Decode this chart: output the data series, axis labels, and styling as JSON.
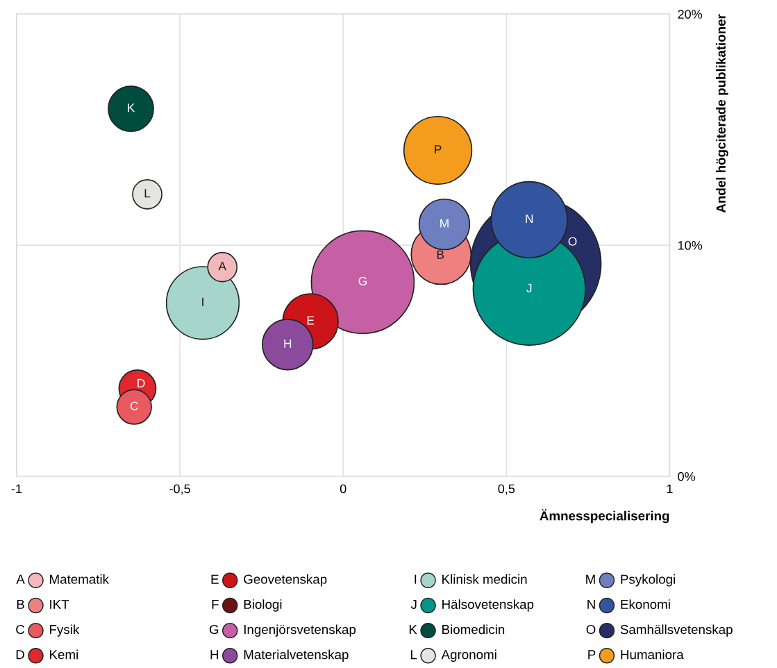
{
  "chart_data": {
    "type": "bubble",
    "xlabel": "Ämnesspecialisering",
    "ylabel": "Andel högciterade publikationer",
    "xlim": [
      -1,
      1
    ],
    "xticks": [
      -1,
      {
        "value": -0.5,
        "label": "-0,5"
      },
      0,
      {
        "value": 0.5,
        "label": "0,5"
      },
      1
    ],
    "ylim": [
      0,
      20
    ],
    "yticks": [
      {
        "value": 0,
        "label": "0%"
      },
      {
        "value": 10,
        "label": "10%"
      },
      {
        "value": 20,
        "label": "20%"
      }
    ],
    "grid": true,
    "legend": "bottom",
    "annotations": [
      {
        "text": "A",
        "x": -0.37,
        "y": 9.05
      },
      {
        "text": "B",
        "x": 0.3,
        "y": 9.6
      },
      {
        "text": "C",
        "x": -0.64,
        "y": 3.0
      },
      {
        "text": "D",
        "x": -0.63,
        "y": 3.8
      },
      {
        "text": "E",
        "x": -0.1,
        "y": 6.7
      },
      "F",
      {
        "text": "G",
        "x": 0.06,
        "y": 8.4
      },
      {
        "text": "H",
        "x": -0.17,
        "y": 5.7
      },
      {
        "text": "I",
        "x": -0.43,
        "y": 7.5
      },
      {
        "text": "J",
        "x": 0.57,
        "y": 8.1
      },
      {
        "text": "K",
        "x": -0.65,
        "y": 15.9
      },
      {
        "text": "L",
        "x": -0.6,
        "y": 12.2
      },
      {
        "text": "M",
        "x": 0.31,
        "y": 10.9
      },
      {
        "text": "N",
        "x": 0.57,
        "y": 11.1
      },
      "O",
      {
        "text": "P",
        "x": 0.29,
        "y": 14.1
      }
    ],
    "series": [
      {
        "name": "Matematik",
        "color": "#f2b8bb",
        "x": [
          -0.37
        ],
        "values": [
          9.05
        ],
        "sizes": [
          0.05
        ]
      },
      {
        "name": "IKT",
        "color": "#ef8080",
        "x": [
          0.3
        ],
        "values": [
          9.6
        ],
        "sizes": [
          0.21
        ]
      },
      {
        "name": "Fysik",
        "color": "#e85a5f",
        "x": [
          -0.64
        ],
        "values": [
          3.0
        ],
        "sizes": [
          0.07
        ]
      },
      {
        "name": "Kemi",
        "color": "#e0262e",
        "x": [
          -0.63
        ],
        "values": [
          3.8
        ],
        "sizes": [
          0.08
        ]
      },
      {
        "name": "Geovetenskap",
        "color": "#cc1419",
        "x": [
          -0.1
        ],
        "values": [
          6.7
        ],
        "sizes": [
          0.18
        ]
      },
      {
        "name": "Biologi",
        "color": "#6b1414",
        "x": [
          null
        ],
        "values": [
          null
        ],
        "sizes": [
          null
        ]
      },
      {
        "name": "Ingenjörsvetenskap",
        "color": "#c660a4",
        "x": [
          0.06
        ],
        "values": [
          8.4
        ],
        "sizes": [
          0.62
        ]
      },
      {
        "name": "Materialvetenskap",
        "color": "#8c4a9c",
        "x": [
          -0.17
        ],
        "values": [
          5.7
        ],
        "sizes": [
          0.15
        ]
      },
      {
        "name": "Klinisk medicin",
        "color": "#a6d6cb",
        "x": [
          -0.43
        ],
        "values": [
          7.5
        ],
        "sizes": [
          0.31
        ]
      },
      {
        "name": "Hälsovetenskap",
        "color": "#009688",
        "x": [
          0.57
        ],
        "values": [
          8.1
        ],
        "sizes": [
          0.74
        ]
      },
      {
        "name": "Biomedicin",
        "color": "#004d40",
        "x": [
          -0.65
        ],
        "values": [
          15.9
        ],
        "sizes": [
          0.12
        ]
      },
      {
        "name": "Agronomi",
        "color": "#e4e4e0",
        "x": [
          -0.6
        ],
        "values": [
          12.2
        ],
        "sizes": [
          0.05
        ]
      },
      {
        "name": "Psykologi",
        "color": "#6d7fc0",
        "x": [
          0.31
        ],
        "values": [
          10.9
        ],
        "sizes": [
          0.15
        ]
      },
      {
        "name": "Ekonomi",
        "color": "#3355a0",
        "x": [
          0.57
        ],
        "values": [
          11.1
        ],
        "sizes": [
          0.34
        ]
      },
      {
        "name": "Samhällsvetenskap",
        "color": "#262e66",
        "x": [
          0.59
        ],
        "values": [
          9.2
        ],
        "sizes": [
          1
        ]
      },
      {
        "name": "Humaniora",
        "color": "#f39c1e",
        "x": [
          0.29
        ],
        "values": [
          14.1
        ],
        "sizes": [
          0.27
        ]
      }
    ]
  }
}
